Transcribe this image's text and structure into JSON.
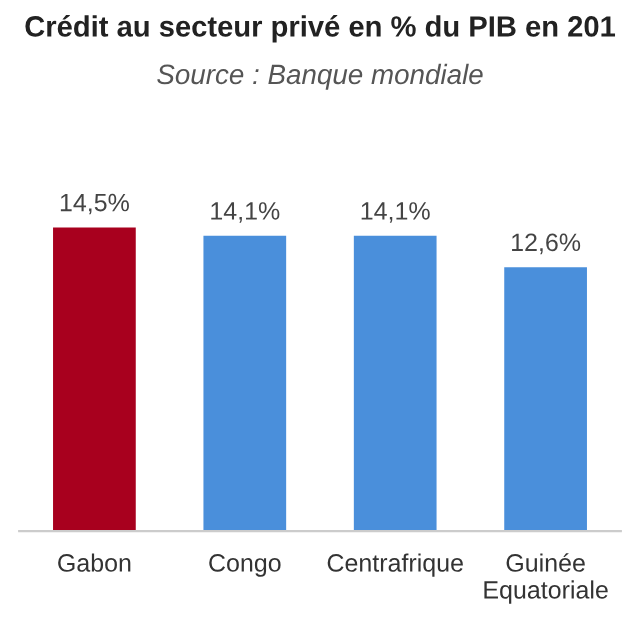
{
  "chart_data": {
    "type": "bar",
    "title": "Crédit au secteur privé en % du PIB en 201",
    "annotations": [
      "Source : Banque mondiale"
    ],
    "categories": [
      "Gabon",
      "Congo",
      "Centrafrique",
      "Guinée\nEquatoriale"
    ],
    "values": [
      14.5,
      14.1,
      14.1,
      12.6
    ],
    "colors": [
      "#a8001e",
      "#4a8fdb",
      "#4a8fdb",
      "#4a8fdb"
    ],
    "value_labels": [
      "14,5%",
      "14,1%",
      "14,1%",
      "12,6%"
    ]
  }
}
